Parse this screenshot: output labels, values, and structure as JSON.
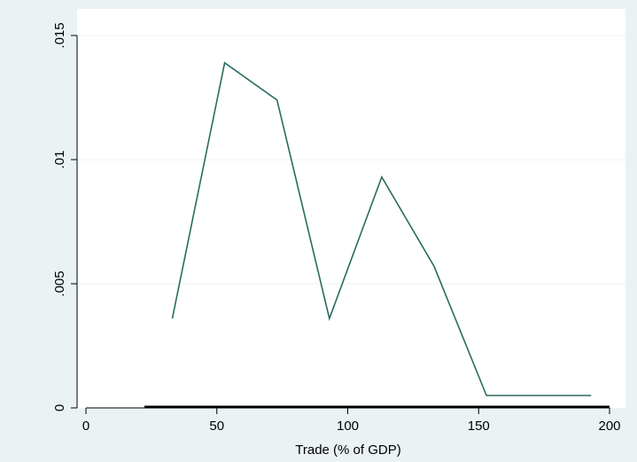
{
  "colors": {
    "background": "#eaf2f3",
    "plot_background": "#ffffff",
    "line": "#2a6b62",
    "grid": "#eaf2f3",
    "axis": "#000000"
  },
  "chart_data": {
    "type": "line",
    "title": "",
    "xlabel": "Trade (% of GDP)",
    "ylabel": "",
    "xlim": [
      -5,
      207
    ],
    "ylim": [
      0,
      0.0152
    ],
    "grid": true,
    "legend": "none",
    "x_ticks": [
      {
        "value": 0,
        "label": "0"
      },
      {
        "value": 50,
        "label": "50"
      },
      {
        "value": 100,
        "label": "100"
      },
      {
        "value": 150,
        "label": "150"
      },
      {
        "value": 200,
        "label": "200"
      }
    ],
    "y_ticks": [
      {
        "value": 0,
        "label": "0"
      },
      {
        "value": 0.005,
        "label": ".005"
      },
      {
        "value": 0.01,
        "label": ".01"
      },
      {
        "value": 0.015,
        "label": ".015"
      }
    ],
    "series": [
      {
        "x": [
          33,
          53,
          73,
          93,
          113,
          133,
          153,
          173,
          193
        ],
        "y": [
          0.0036,
          0.0139,
          0.0124,
          0.0036,
          0.0093,
          0.0057,
          0.0005,
          0.0005,
          0.0005
        ]
      }
    ]
  }
}
